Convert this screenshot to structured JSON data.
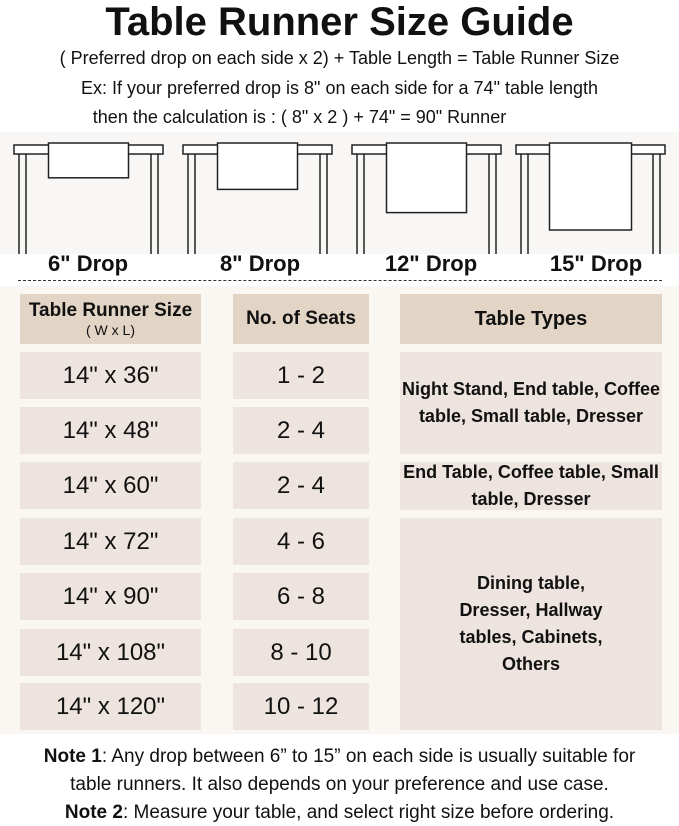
{
  "title": "Table Runner Size Guide",
  "formula": "( Preferred drop on each side x 2) + Table Length = Table Runner Size",
  "example_line1": "Ex: If your preferred drop is 8\" on each side for a 74\" table length",
  "example_line2": "then the calculation is : ( 8\" x 2 ) + 74\" = 90\" Runner",
  "drops": [
    {
      "label": "6\" Drop",
      "inches": 6
    },
    {
      "label": "8\" Drop",
      "inches": 8
    },
    {
      "label": "12\" Drop",
      "inches": 12
    },
    {
      "label": "15\" Drop",
      "inches": 15
    }
  ],
  "table": {
    "headers": {
      "size": "Table Runner Size",
      "size_sub": "( W x L)",
      "seats": "No. of Seats",
      "types": "Table Types"
    },
    "rows": [
      {
        "size": "14\" x 36\"",
        "seats": "1 - 2"
      },
      {
        "size": "14\" x 48\"",
        "seats": "2 - 4"
      },
      {
        "size": "14\" x 60\"",
        "seats": "2 - 4"
      },
      {
        "size": "14\" x 72\"",
        "seats": "4 - 6"
      },
      {
        "size": "14\" x 90\"",
        "seats": "6 - 8"
      },
      {
        "size": "14\" x 108\"",
        "seats": "8 - 10"
      },
      {
        "size": "14\" x 120\"",
        "seats": "10 - 12"
      }
    ],
    "types": [
      "Night Stand, End table, Coffee table, Small table, Dresser",
      "End Table, Coffee table, Small table, Dresser",
      "Dining table, Dresser, Hallway tables, Cabinets, Others"
    ]
  },
  "notes": [
    {
      "label": "Note 1",
      "text": ": Any drop between 6” to 15” on each side is usually suitable for",
      "text2": "table runners. It also depends on your preference and use case."
    },
    {
      "label": "Note 2",
      "text": ": Measure your table, and select right size before ordering."
    }
  ],
  "colors": {
    "header": "#e3d5c6",
    "cell": "#ede4df",
    "panel": "#faf6f2"
  }
}
